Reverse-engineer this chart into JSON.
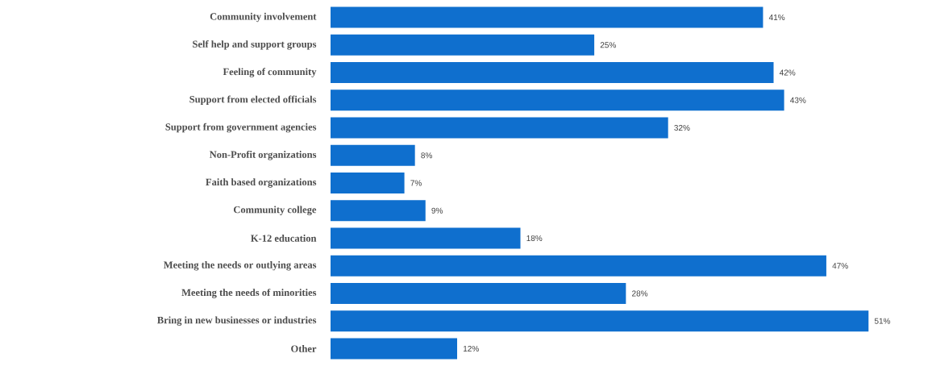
{
  "chart_data": {
    "type": "bar",
    "orientation": "horizontal",
    "color": "#0f6fce",
    "categories": [
      "Community involvement",
      "Self help and support groups",
      "Feeling of community",
      "Support from elected officials",
      "Support from government agencies",
      "Non-Profit organizations",
      "Faith based organizations",
      "Community college",
      "K-12 education",
      "Meeting the needs or outlying areas",
      "Meeting the needs of minorities",
      "Bring in new businesses or industries",
      "Other"
    ],
    "values": [
      41,
      25,
      42,
      43,
      32,
      8,
      7,
      9,
      18,
      47,
      28,
      51,
      12
    ],
    "value_labels": [
      "41%",
      "25%",
      "42%",
      "43%",
      "32%",
      "8%",
      "7%",
      "9%",
      "18%",
      "47%",
      "28%",
      "51%",
      "12%"
    ]
  }
}
